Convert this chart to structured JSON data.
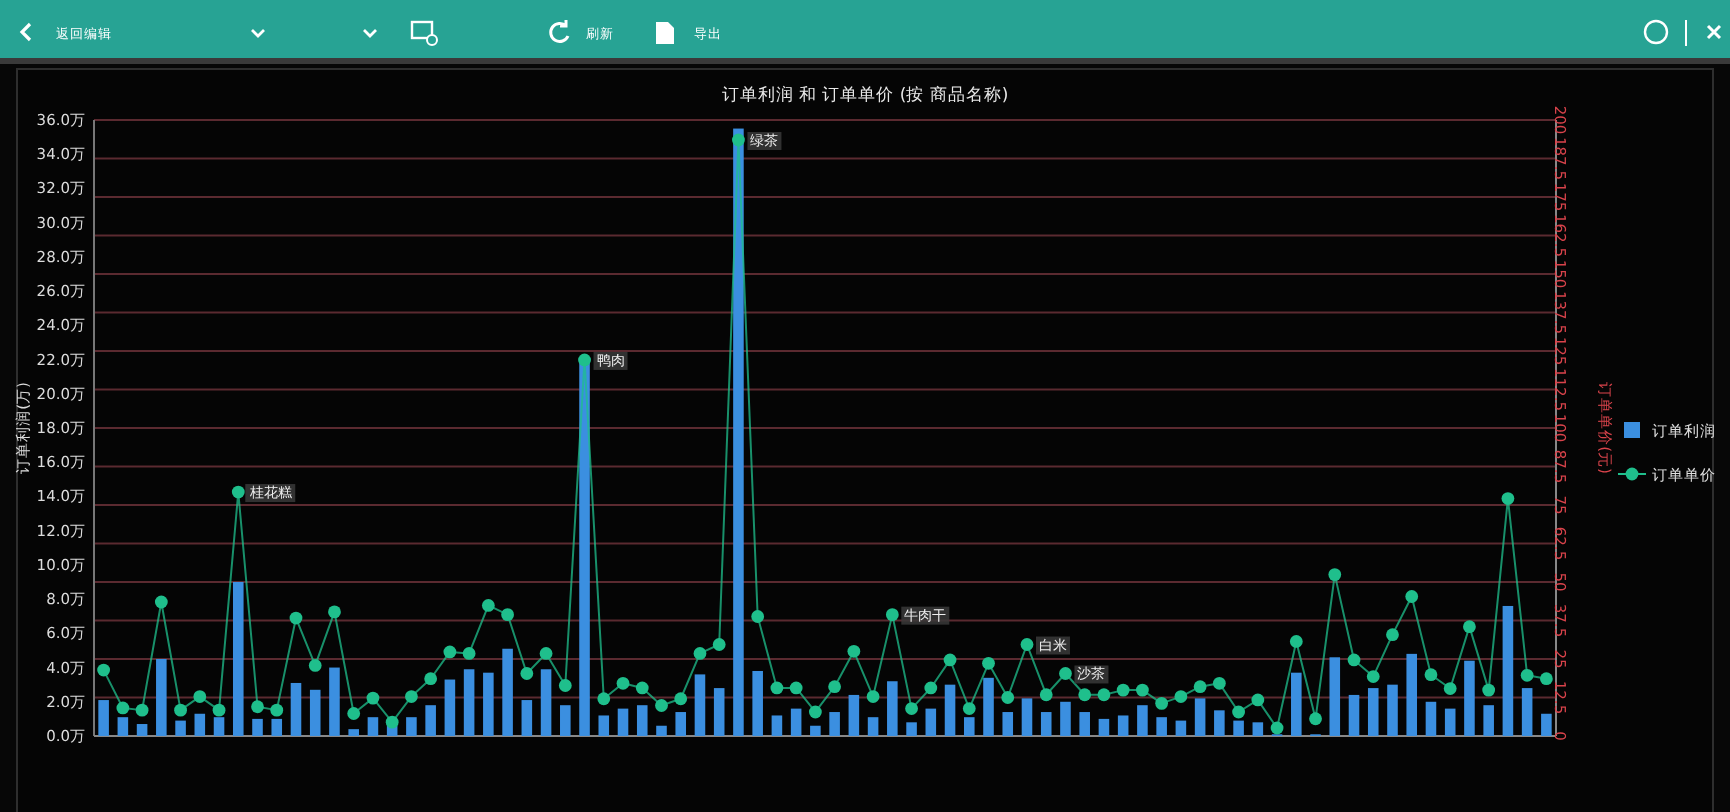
{
  "chart_data": {
    "type": "bar",
    "title": "订单利润 和 订单单价 (按 商品名称)",
    "ylabel": "订单利润(万)",
    "y2label": "订单单价(元)",
    "categories": [
      null,
      null,
      null,
      null,
      null,
      null,
      null,
      null,
      null,
      null,
      null,
      null,
      null,
      null,
      null,
      null,
      null,
      null,
      null,
      null,
      null,
      null,
      null,
      null,
      null,
      null,
      null,
      null,
      null,
      null,
      null,
      null,
      null,
      null,
      null,
      null,
      null,
      null,
      null,
      null,
      null,
      null,
      null,
      null,
      null,
      null,
      null,
      null,
      null,
      null,
      null,
      null,
      null,
      null,
      null,
      null,
      null,
      null,
      null,
      null,
      null,
      null,
      null,
      null,
      null,
      null,
      null,
      null,
      null,
      null,
      null,
      null,
      null,
      null,
      null,
      null
    ],
    "ylim": [
      0,
      36
    ],
    "yticks": [
      {
        "value": 0,
        "label": "0.0万"
      },
      {
        "value": 2,
        "label": "2.0万"
      },
      {
        "value": 4,
        "label": "4.0万"
      },
      {
        "value": 6,
        "label": "6.0万"
      },
      {
        "value": 8,
        "label": "8.0万"
      },
      {
        "value": 10,
        "label": "10.0万"
      },
      {
        "value": 12,
        "label": "12.0万"
      },
      {
        "value": 14,
        "label": "14.0万"
      },
      {
        "value": 16,
        "label": "16.0万"
      },
      {
        "value": 18,
        "label": "18.0万"
      },
      {
        "value": 20,
        "label": "20.0万"
      },
      {
        "value": 22,
        "label": "22.0万"
      },
      {
        "value": 24,
        "label": "24.0万"
      },
      {
        "value": 26,
        "label": "26.0万"
      },
      {
        "value": 28,
        "label": "28.0万"
      },
      {
        "value": 30,
        "label": "30.0万"
      },
      {
        "value": 32,
        "label": "32.0万"
      },
      {
        "value": 34,
        "label": "34.0万"
      },
      {
        "value": 36,
        "label": "36.0万"
      }
    ],
    "y2lim": [
      0,
      200
    ],
    "y2ticks": [
      0,
      12.5,
      25,
      37.5,
      50,
      62.5,
      75,
      87.5,
      100,
      112.5,
      125,
      137.5,
      150,
      162.5,
      175,
      187.5,
      200
    ],
    "grid": "y2",
    "legend": "right",
    "series": [
      {
        "name": "订单利润",
        "color": "#3b8fe0",
        "values": [
          2.1,
          1.1,
          0.7,
          4.5,
          0.9,
          1.3,
          1.1,
          9.0,
          1.0,
          1.0,
          3.1,
          2.7,
          4.0,
          0.4,
          1.1,
          0.6,
          1.1,
          1.8,
          3.3,
          3.9,
          3.7,
          5.1,
          2.1,
          3.9,
          1.8,
          22.0,
          1.2,
          1.6,
          1.8,
          0.6,
          1.4,
          3.6,
          2.8,
          35.5,
          3.8,
          1.2,
          1.6,
          0.6,
          1.4,
          2.4,
          1.1,
          3.2,
          0.8,
          1.6,
          3.0,
          1.1,
          3.4,
          1.4,
          2.2,
          1.4,
          2.0,
          1.4,
          1.0,
          1.2,
          1.8,
          1.1,
          0.9,
          2.2,
          1.5,
          0.9,
          0.8,
          0.1,
          3.7,
          0.1,
          4.6,
          2.4,
          2.8,
          3.0,
          4.8,
          2.0,
          1.6,
          4.4,
          1.8,
          7.6,
          2.8,
          1.3
        ]
      },
      {
        "name": "订单单价",
        "type": "line",
        "axis": "y2",
        "color": "#1fbf8c",
        "marker": "circle",
        "line_style": "solid",
        "values": [
          21.4,
          9.1,
          8.4,
          43.5,
          8.4,
          12.8,
          8.4,
          79.2,
          9.5,
          8.4,
          38.3,
          22.9,
          40.3,
          7.3,
          12.3,
          4.5,
          12.8,
          18.6,
          27.3,
          26.8,
          42.4,
          39.4,
          20.3,
          26.8,
          16.4,
          122.1,
          12.1,
          17.1,
          15.6,
          9.9,
          12.1,
          26.8,
          29.7,
          193.5,
          38.8,
          15.6,
          15.6,
          7.8,
          16.0,
          27.5,
          12.8,
          39.4,
          8.9,
          15.6,
          24.7,
          8.9,
          23.6,
          12.5,
          29.7,
          13.4,
          20.3,
          13.4,
          13.4,
          14.9,
          14.9,
          10.6,
          12.8,
          16.0,
          17.1,
          7.8,
          11.7,
          2.6,
          30.7,
          5.6,
          52.4,
          24.7,
          19.3,
          32.9,
          45.3,
          19.9,
          15.4,
          35.5,
          14.9,
          77.1,
          19.7,
          18.6
        ],
        "value_labels": [
          null,
          null,
          null,
          null,
          null,
          null,
          null,
          "桂花糕",
          null,
          null,
          null,
          null,
          null,
          null,
          null,
          null,
          null,
          null,
          null,
          null,
          null,
          null,
          null,
          null,
          null,
          "鸭肉",
          null,
          null,
          null,
          null,
          null,
          null,
          null,
          "绿茶",
          null,
          null,
          null,
          null,
          null,
          null,
          null,
          "牛肉干",
          null,
          null,
          null,
          null,
          null,
          null,
          "白米",
          null,
          "沙茶",
          null,
          null,
          null,
          null,
          null,
          null,
          null,
          null,
          null,
          null,
          null,
          null,
          null,
          null,
          null,
          null,
          null,
          null,
          null,
          null,
          null,
          null,
          null,
          null,
          null
        ]
      }
    ],
    "annotations": [
      "返回编辑",
      "刷新",
      "导出"
    ]
  }
}
